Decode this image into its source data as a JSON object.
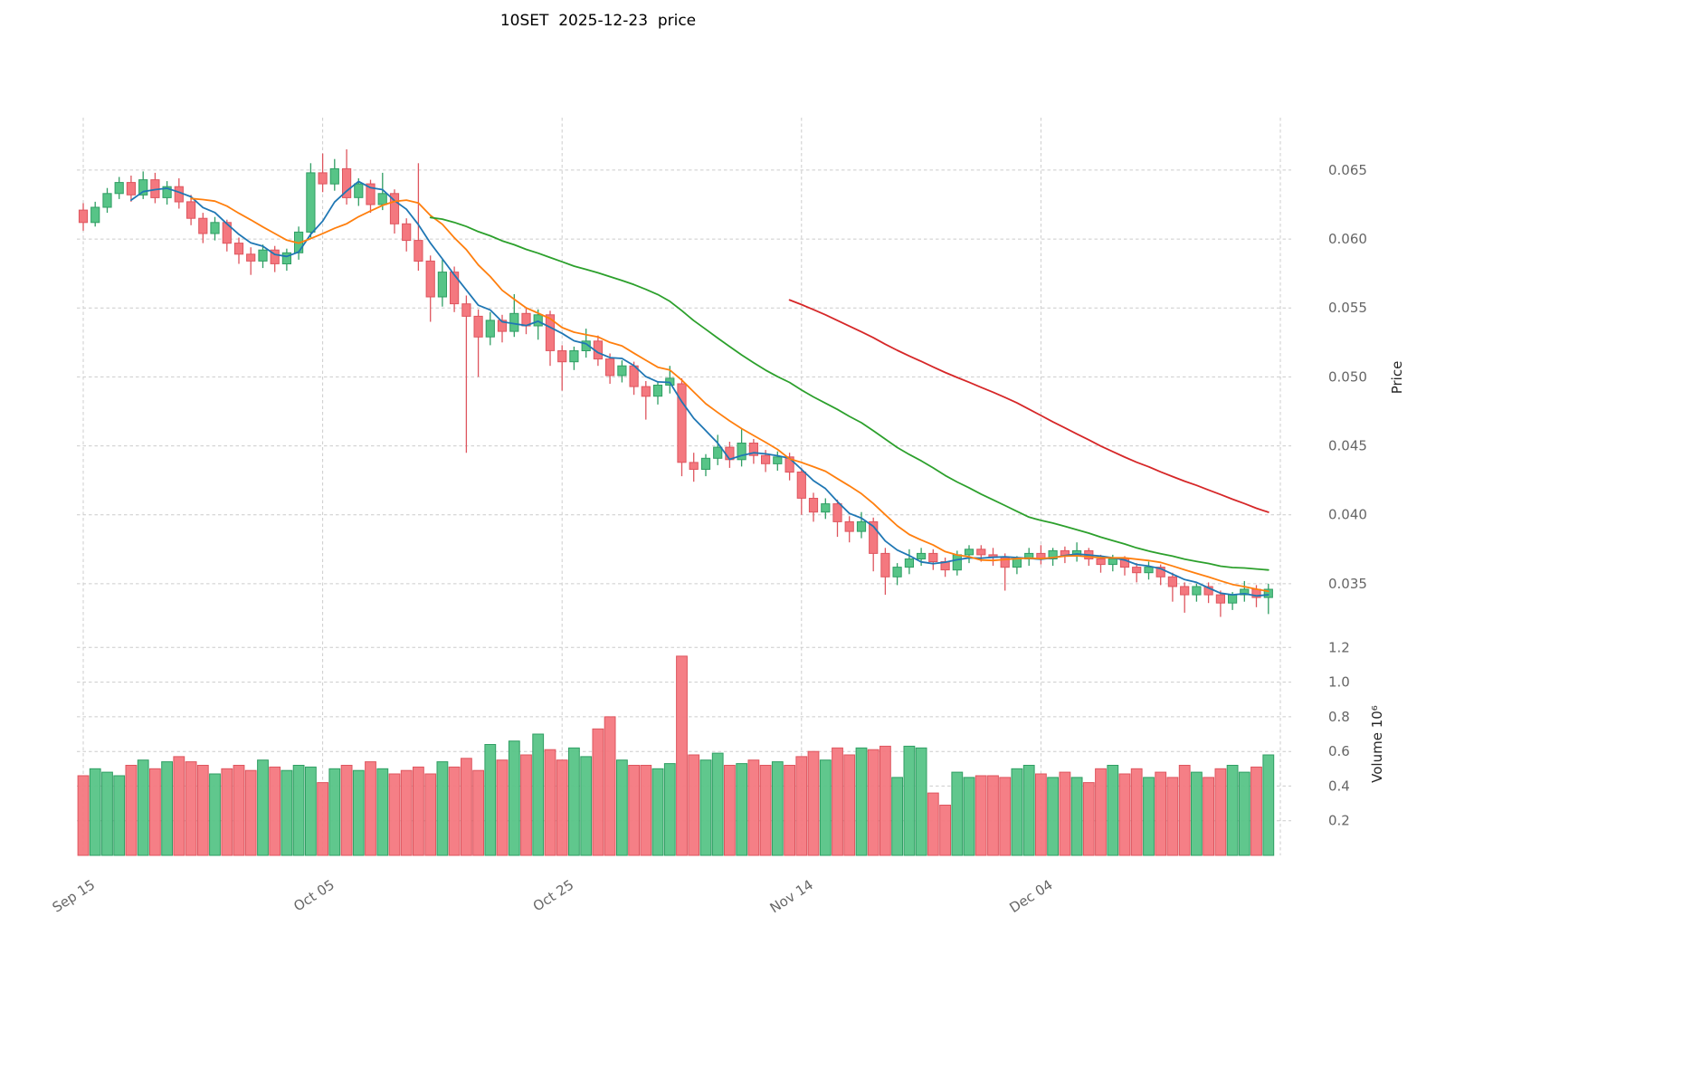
{
  "title": "10SET  2025-12-23  price",
  "axes": {
    "price_label": "Price",
    "volume_label": "Volume 10⁶",
    "price_ticks": [
      "0.065",
      "0.060",
      "0.055",
      "0.050",
      "0.045",
      "0.040",
      "0.035"
    ],
    "volume_ticks": [
      "1.2",
      "1.0",
      "0.8",
      "0.6",
      "0.4",
      "0.2"
    ],
    "x_ticks": [
      {
        "i": 0,
        "label": "Sep 15"
      },
      {
        "i": 20,
        "label": "Oct 05"
      },
      {
        "i": 40,
        "label": "Oct 25"
      },
      {
        "i": 60,
        "label": "Nov 14"
      },
      {
        "i": 80,
        "label": "Dec 04"
      },
      {
        "i": 100,
        "label": ""
      }
    ]
  },
  "chart_data": {
    "type": "candlestick+volume",
    "symbol": "10SET",
    "as_of_date": "2025-12-23",
    "start_date": "2025-09-15",
    "frequency": "daily",
    "grid": "dashed",
    "legend": "none",
    "price_ylim": [
      0.0325,
      0.0688
    ],
    "volume_ylim_millions": [
      0,
      1.28
    ],
    "colors": {
      "up": "#57c487",
      "up_edge": "#2f9e63",
      "down": "#f4787f",
      "down_edge": "#de555e",
      "grid": "#cccccc",
      "tick_label": "#666666"
    },
    "moving_averages": [
      {
        "name": "SMA5",
        "window": 5,
        "color": "#1f77b4"
      },
      {
        "name": "SMA10",
        "window": 10,
        "color": "#ff7f0e"
      },
      {
        "name": "SMA30",
        "window": 30,
        "color": "#2ca02c"
      },
      {
        "name": "SMA60",
        "window": 60,
        "color": "#d62728"
      }
    ],
    "ohlc": [
      [
        0.0621,
        0.0626,
        0.0606,
        0.0612
      ],
      [
        0.0612,
        0.0627,
        0.0609,
        0.0623
      ],
      [
        0.0623,
        0.0637,
        0.0619,
        0.0633
      ],
      [
        0.0633,
        0.0645,
        0.0629,
        0.0641
      ],
      [
        0.0641,
        0.0646,
        0.0627,
        0.0632
      ],
      [
        0.0632,
        0.0649,
        0.0629,
        0.0643
      ],
      [
        0.0643,
        0.0648,
        0.0626,
        0.063
      ],
      [
        0.063,
        0.0642,
        0.0625,
        0.0638
      ],
      [
        0.0638,
        0.0644,
        0.0622,
        0.0627
      ],
      [
        0.0627,
        0.0632,
        0.061,
        0.0615
      ],
      [
        0.0615,
        0.0619,
        0.0597,
        0.0604
      ],
      [
        0.0604,
        0.0616,
        0.0599,
        0.0612
      ],
      [
        0.0612,
        0.0614,
        0.0591,
        0.0597
      ],
      [
        0.0597,
        0.0601,
        0.0582,
        0.0589
      ],
      [
        0.0589,
        0.0594,
        0.0574,
        0.0584
      ],
      [
        0.0584,
        0.0596,
        0.0579,
        0.0592
      ],
      [
        0.0592,
        0.0595,
        0.0576,
        0.0582
      ],
      [
        0.0582,
        0.0593,
        0.0577,
        0.059
      ],
      [
        0.059,
        0.0609,
        0.0585,
        0.0605
      ],
      [
        0.0605,
        0.0655,
        0.0601,
        0.0648
      ],
      [
        0.0648,
        0.0662,
        0.0634,
        0.064
      ],
      [
        0.064,
        0.0658,
        0.0635,
        0.0651
      ],
      [
        0.0651,
        0.0665,
        0.0625,
        0.063
      ],
      [
        0.063,
        0.0644,
        0.0624,
        0.064
      ],
      [
        0.064,
        0.0643,
        0.0619,
        0.0625
      ],
      [
        0.0625,
        0.0648,
        0.0621,
        0.0633
      ],
      [
        0.0633,
        0.0636,
        0.0604,
        0.0611
      ],
      [
        0.0611,
        0.0615,
        0.0591,
        0.0599
      ],
      [
        0.0599,
        0.0655,
        0.0577,
        0.0584
      ],
      [
        0.0584,
        0.0588,
        0.054,
        0.0558
      ],
      [
        0.0558,
        0.0585,
        0.0551,
        0.0576
      ],
      [
        0.0576,
        0.058,
        0.0547,
        0.0553
      ],
      [
        0.0553,
        0.0559,
        0.0445,
        0.0544
      ],
      [
        0.0544,
        0.0549,
        0.05,
        0.0529
      ],
      [
        0.0529,
        0.0547,
        0.0523,
        0.0541
      ],
      [
        0.0541,
        0.0545,
        0.0525,
        0.0533
      ],
      [
        0.0533,
        0.056,
        0.0529,
        0.0546
      ],
      [
        0.0546,
        0.055,
        0.0531,
        0.0537
      ],
      [
        0.0537,
        0.0549,
        0.0527,
        0.0545
      ],
      [
        0.0545,
        0.0548,
        0.0508,
        0.0519
      ],
      [
        0.0519,
        0.0523,
        0.049,
        0.0511
      ],
      [
        0.0511,
        0.0522,
        0.0505,
        0.0519
      ],
      [
        0.0519,
        0.0535,
        0.0514,
        0.0526
      ],
      [
        0.0526,
        0.053,
        0.0508,
        0.0513
      ],
      [
        0.0513,
        0.0517,
        0.0495,
        0.0501
      ],
      [
        0.0501,
        0.0512,
        0.0496,
        0.0508
      ],
      [
        0.0508,
        0.0511,
        0.0487,
        0.0493
      ],
      [
        0.0493,
        0.0497,
        0.0469,
        0.0486
      ],
      [
        0.0486,
        0.0497,
        0.048,
        0.0494
      ],
      [
        0.0494,
        0.0508,
        0.0488,
        0.0499
      ],
      [
        0.0495,
        0.0499,
        0.0428,
        0.0438
      ],
      [
        0.0438,
        0.0445,
        0.0424,
        0.0433
      ],
      [
        0.0433,
        0.0444,
        0.0428,
        0.0441
      ],
      [
        0.0441,
        0.0458,
        0.0436,
        0.0449
      ],
      [
        0.0449,
        0.0453,
        0.0434,
        0.044
      ],
      [
        0.044,
        0.0462,
        0.0435,
        0.0452
      ],
      [
        0.0452,
        0.0455,
        0.0437,
        0.0443
      ],
      [
        0.0443,
        0.0447,
        0.0431,
        0.0437
      ],
      [
        0.0437,
        0.0446,
        0.0432,
        0.0442
      ],
      [
        0.0442,
        0.0445,
        0.0425,
        0.0431
      ],
      [
        0.0431,
        0.0434,
        0.04,
        0.0412
      ],
      [
        0.0412,
        0.0416,
        0.0395,
        0.0402
      ],
      [
        0.0402,
        0.0412,
        0.0397,
        0.0408
      ],
      [
        0.0408,
        0.0411,
        0.0384,
        0.0395
      ],
      [
        0.0395,
        0.0399,
        0.038,
        0.0388
      ],
      [
        0.0388,
        0.0402,
        0.0383,
        0.0395
      ],
      [
        0.0395,
        0.0398,
        0.0359,
        0.0372
      ],
      [
        0.0372,
        0.0376,
        0.0342,
        0.0355
      ],
      [
        0.0355,
        0.0365,
        0.0349,
        0.0362
      ],
      [
        0.0362,
        0.0375,
        0.0357,
        0.0368
      ],
      [
        0.0368,
        0.0376,
        0.0363,
        0.0372
      ],
      [
        0.0372,
        0.0375,
        0.036,
        0.0366
      ],
      [
        0.0366,
        0.0369,
        0.0355,
        0.036
      ],
      [
        0.036,
        0.0374,
        0.0356,
        0.0371
      ],
      [
        0.0371,
        0.0378,
        0.0365,
        0.0375
      ],
      [
        0.0375,
        0.0378,
        0.0366,
        0.0371
      ],
      [
        0.0371,
        0.0376,
        0.0363,
        0.0369
      ],
      [
        0.0369,
        0.0372,
        0.0345,
        0.0362
      ],
      [
        0.0362,
        0.037,
        0.0357,
        0.0368
      ],
      [
        0.0368,
        0.0376,
        0.0363,
        0.0372
      ],
      [
        0.0372,
        0.0378,
        0.0364,
        0.0368
      ],
      [
        0.0368,
        0.0376,
        0.0363,
        0.0374
      ],
      [
        0.0374,
        0.0377,
        0.0365,
        0.037
      ],
      [
        0.037,
        0.038,
        0.0366,
        0.0374
      ],
      [
        0.0374,
        0.0376,
        0.0363,
        0.0368
      ],
      [
        0.0368,
        0.0371,
        0.0358,
        0.0364
      ],
      [
        0.0364,
        0.0371,
        0.0359,
        0.0368
      ],
      [
        0.0368,
        0.037,
        0.0356,
        0.0362
      ],
      [
        0.0362,
        0.0365,
        0.0351,
        0.0358
      ],
      [
        0.0358,
        0.0366,
        0.0353,
        0.0362
      ],
      [
        0.0362,
        0.0364,
        0.0349,
        0.0355
      ],
      [
        0.0355,
        0.0358,
        0.0337,
        0.0348
      ],
      [
        0.0348,
        0.0351,
        0.0329,
        0.0342
      ],
      [
        0.0342,
        0.035,
        0.0337,
        0.0348
      ],
      [
        0.0348,
        0.0351,
        0.0336,
        0.0342
      ],
      [
        0.0342,
        0.0345,
        0.0326,
        0.0336
      ],
      [
        0.0336,
        0.0344,
        0.0331,
        0.0342
      ],
      [
        0.0342,
        0.0352,
        0.0337,
        0.0346
      ],
      [
        0.0346,
        0.0349,
        0.0333,
        0.034
      ],
      [
        0.034,
        0.035,
        0.0328,
        0.0346
      ]
    ],
    "volume_millions": [
      0.46,
      0.5,
      0.48,
      0.46,
      0.52,
      0.55,
      0.5,
      0.54,
      0.57,
      0.54,
      0.52,
      0.47,
      0.5,
      0.52,
      0.49,
      0.55,
      0.51,
      0.49,
      0.52,
      0.51,
      0.42,
      0.5,
      0.52,
      0.49,
      0.54,
      0.5,
      0.47,
      0.49,
      0.51,
      0.47,
      0.54,
      0.51,
      0.56,
      0.49,
      0.64,
      0.55,
      0.66,
      0.58,
      0.7,
      0.61,
      0.55,
      0.62,
      0.57,
      0.73,
      0.8,
      0.55,
      0.52,
      0.52,
      0.5,
      0.53,
      1.15,
      0.58,
      0.55,
      0.59,
      0.52,
      0.53,
      0.55,
      0.52,
      0.54,
      0.52,
      0.57,
      0.6,
      0.55,
      0.62,
      0.58,
      0.62,
      0.61,
      0.63,
      0.45,
      0.63,
      0.62,
      0.36,
      0.29,
      0.48,
      0.45,
      0.46,
      0.46,
      0.45,
      0.5,
      0.52,
      0.47,
      0.45,
      0.48,
      0.45,
      0.42,
      0.5,
      0.52,
      0.47,
      0.5,
      0.45,
      0.48,
      0.45,
      0.52,
      0.48,
      0.45,
      0.5,
      0.52,
      0.48,
      0.51,
      0.58
    ]
  }
}
